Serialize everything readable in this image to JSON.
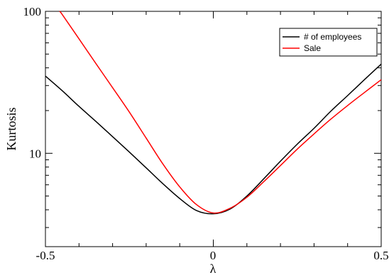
{
  "chart_data": {
    "type": "line",
    "title": "",
    "xlabel": "λ",
    "ylabel": "Kurtosis",
    "xlim": [
      -0.5,
      0.5
    ],
    "ylim": [
      2.2,
      100
    ],
    "yscale": "log",
    "grid": false,
    "legend_position": "top-right",
    "x_tick_labels": [
      "-0.5",
      "0",
      "0.5"
    ],
    "x_tick_values": [
      -0.5,
      0,
      0.5
    ],
    "y_tick_labels": [
      "10",
      "100"
    ],
    "y_tick_values": [
      10,
      100
    ],
    "series": [
      {
        "name": "# of employees",
        "color": "#000000",
        "x": [
          -0.5,
          -0.45,
          -0.4,
          -0.35,
          -0.3,
          -0.25,
          -0.2,
          -0.15,
          -0.1,
          -0.05,
          0,
          0.05,
          0.1,
          0.15,
          0.2,
          0.25,
          0.3,
          0.35,
          0.4,
          0.45,
          0.5
        ],
        "y": [
          35.0,
          27.6,
          21.4,
          16.8,
          13.1,
          10.2,
          7.9,
          6.1,
          4.8,
          3.95,
          3.75,
          4.05,
          5.0,
          6.6,
          8.8,
          11.6,
          15.0,
          19.8,
          25.5,
          33.0,
          42.5
        ]
      },
      {
        "name": "Sale",
        "color": "#ff0000",
        "x": [
          -0.458,
          -0.45,
          -0.4,
          -0.35,
          -0.3,
          -0.25,
          -0.2,
          -0.15,
          -0.1,
          -0.05,
          0,
          0.05,
          0.1,
          0.15,
          0.2,
          0.25,
          0.3,
          0.35,
          0.4,
          0.45,
          0.5
        ],
        "y": [
          100,
          95,
          64,
          43,
          29,
          19.5,
          12.8,
          8.4,
          5.8,
          4.35,
          3.8,
          4.1,
          4.9,
          6.3,
          8.2,
          10.7,
          13.7,
          17.4,
          21.7,
          26.8,
          33.0
        ]
      }
    ]
  }
}
